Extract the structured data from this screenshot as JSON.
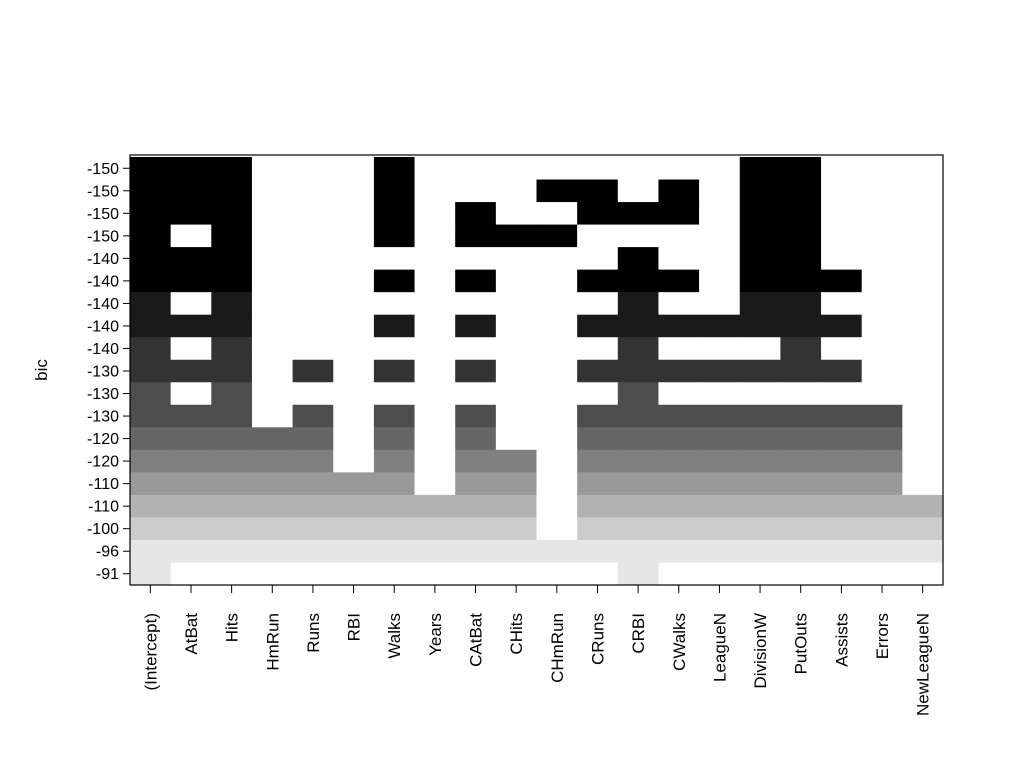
{
  "chart_data": {
    "type": "heatmap",
    "ylabel": "bic",
    "xlabel": "",
    "title": "",
    "categories": [
      "(Intercept)",
      "AtBat",
      "Hits",
      "HmRun",
      "Runs",
      "RBI",
      "Walks",
      "Years",
      "CAtBat",
      "CHits",
      "CHmRun",
      "CRuns",
      "CRBI",
      "CWalks",
      "LeagueN",
      "DivisionW",
      "PutOuts",
      "Assists",
      "Errors",
      "NewLeagueN"
    ],
    "row_labels": [
      "-150",
      "-150",
      "-150",
      "-150",
      "-140",
      "-140",
      "-140",
      "-140",
      "-140",
      "-130",
      "-130",
      "-130",
      "-120",
      "-120",
      "-110",
      "-110",
      "-100",
      "-96",
      "-91"
    ],
    "row_colors": [
      "#000000",
      "#000000",
      "#000000",
      "#000000",
      "#000000",
      "#000000",
      "#1a1a1a",
      "#1a1a1a",
      "#333333",
      "#333333",
      "#4d4d4d",
      "#4d4d4d",
      "#666666",
      "#808080",
      "#999999",
      "#b3b3b3",
      "#cccccc",
      "#e6e6e6",
      "#e6e6e6"
    ],
    "empty_color": "#ffffff",
    "matrix": [
      [
        1,
        1,
        1,
        0,
        0,
        0,
        1,
        0,
        0,
        0,
        0,
        0,
        0,
        0,
        0,
        1,
        1,
        0,
        0,
        0
      ],
      [
        1,
        1,
        1,
        0,
        0,
        0,
        1,
        0,
        0,
        0,
        1,
        1,
        0,
        1,
        0,
        1,
        1,
        0,
        0,
        0
      ],
      [
        1,
        1,
        1,
        0,
        0,
        0,
        1,
        0,
        1,
        0,
        0,
        1,
        1,
        1,
        0,
        1,
        1,
        0,
        0,
        0
      ],
      [
        1,
        0,
        1,
        0,
        0,
        0,
        1,
        0,
        1,
        1,
        1,
        0,
        0,
        0,
        0,
        1,
        1,
        0,
        0,
        0
      ],
      [
        1,
        1,
        1,
        0,
        0,
        0,
        0,
        0,
        0,
        0,
        0,
        0,
        1,
        0,
        0,
        1,
        1,
        0,
        0,
        0
      ],
      [
        1,
        1,
        1,
        0,
        0,
        0,
        1,
        0,
        1,
        0,
        0,
        1,
        1,
        1,
        0,
        1,
        1,
        1,
        0,
        0
      ],
      [
        1,
        0,
        1,
        0,
        0,
        0,
        0,
        0,
        0,
        0,
        0,
        0,
        1,
        0,
        0,
        1,
        1,
        0,
        0,
        0
      ],
      [
        1,
        1,
        1,
        0,
        0,
        0,
        1,
        0,
        1,
        0,
        0,
        1,
        1,
        1,
        1,
        1,
        1,
        1,
        0,
        0
      ],
      [
        1,
        0,
        1,
        0,
        0,
        0,
        0,
        0,
        0,
        0,
        0,
        0,
        1,
        0,
        0,
        0,
        1,
        0,
        0,
        0
      ],
      [
        1,
        1,
        1,
        0,
        1,
        0,
        1,
        0,
        1,
        0,
        0,
        1,
        1,
        1,
        1,
        1,
        1,
        1,
        0,
        0
      ],
      [
        1,
        0,
        1,
        0,
        0,
        0,
        0,
        0,
        0,
        0,
        0,
        0,
        1,
        0,
        0,
        0,
        0,
        0,
        0,
        0
      ],
      [
        1,
        1,
        1,
        0,
        1,
        0,
        1,
        0,
        1,
        0,
        0,
        1,
        1,
        1,
        1,
        1,
        1,
        1,
        1,
        0
      ],
      [
        1,
        1,
        1,
        1,
        1,
        0,
        1,
        0,
        1,
        0,
        0,
        1,
        1,
        1,
        1,
        1,
        1,
        1,
        1,
        0
      ],
      [
        1,
        1,
        1,
        1,
        1,
        0,
        1,
        0,
        1,
        1,
        0,
        1,
        1,
        1,
        1,
        1,
        1,
        1,
        1,
        0
      ],
      [
        1,
        1,
        1,
        1,
        1,
        1,
        1,
        0,
        1,
        1,
        0,
        1,
        1,
        1,
        1,
        1,
        1,
        1,
        1,
        0
      ],
      [
        1,
        1,
        1,
        1,
        1,
        1,
        1,
        1,
        1,
        1,
        0,
        1,
        1,
        1,
        1,
        1,
        1,
        1,
        1,
        1
      ],
      [
        1,
        1,
        1,
        1,
        1,
        1,
        1,
        1,
        1,
        1,
        0,
        1,
        1,
        1,
        1,
        1,
        1,
        1,
        1,
        1
      ],
      [
        1,
        1,
        1,
        1,
        1,
        1,
        1,
        1,
        1,
        1,
        1,
        1,
        1,
        1,
        1,
        1,
        1,
        1,
        1,
        1
      ],
      [
        1,
        0,
        0,
        0,
        0,
        0,
        0,
        0,
        0,
        0,
        0,
        0,
        1,
        0,
        0,
        0,
        0,
        0,
        0,
        0
      ]
    ]
  }
}
